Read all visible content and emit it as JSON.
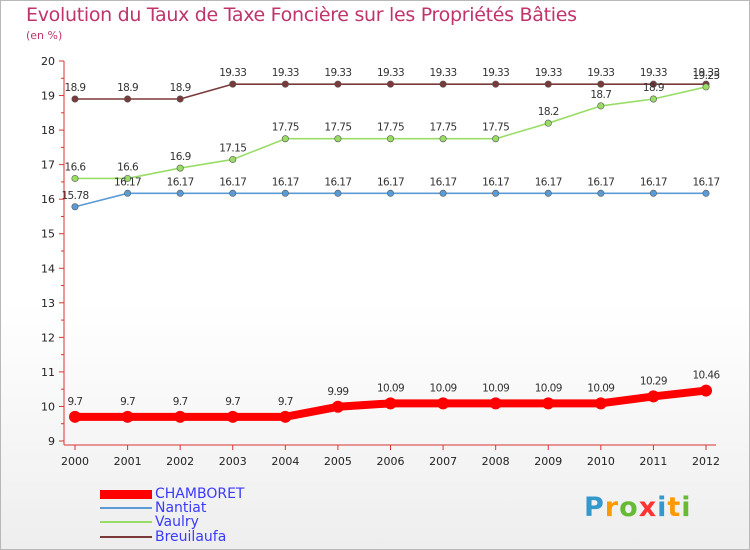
{
  "header": {
    "title": "Evolution du Taux de Taxe Foncière sur les Propriétés Bâties",
    "unit": "(en %)"
  },
  "chart_data": {
    "type": "line",
    "title": "Evolution du Taux de Taxe Foncière sur les Propriétés Bâties",
    "ylabel": "(en %)",
    "xlabel": "",
    "x": [
      "2000",
      "2001",
      "2002",
      "2003",
      "2004",
      "2005",
      "2006",
      "2007",
      "2008",
      "2009",
      "2010",
      "2011",
      "2012"
    ],
    "ylim": [
      9,
      20
    ],
    "yticks": [
      "9",
      "10",
      "11",
      "12",
      "13",
      "14",
      "15",
      "16",
      "17",
      "18",
      "19",
      "20"
    ],
    "grid": false,
    "legend_position": "bottom-left",
    "series": [
      {
        "name": "CHAMBORET",
        "color": "#ff0000",
        "values": [
          9.7,
          9.7,
          9.7,
          9.7,
          9.7,
          9.99,
          10.09,
          10.09,
          10.09,
          10.09,
          10.09,
          10.29,
          10.46
        ],
        "labels": [
          "9.7",
          "9.7",
          "9.7",
          "9.7",
          "9.7",
          "9.99",
          "10.09",
          "10.09",
          "10.09",
          "10.09",
          "10.09",
          "10.29",
          "10.46"
        ]
      },
      {
        "name": "Nantiat",
        "color": "#5b9bd5",
        "values": [
          15.78,
          16.17,
          16.17,
          16.17,
          16.17,
          16.17,
          16.17,
          16.17,
          16.17,
          16.17,
          16.17,
          16.17,
          16.17
        ],
        "labels": [
          "15.78",
          "16.17",
          "16.17",
          "16.17",
          "16.17",
          "16.17",
          "16.17",
          "16.17",
          "16.17",
          "16.17",
          "16.17",
          "16.17",
          "16.17"
        ]
      },
      {
        "name": "Vaulry",
        "color": "#99dd66",
        "values": [
          16.6,
          16.6,
          16.9,
          17.15,
          17.75,
          17.75,
          17.75,
          17.75,
          17.75,
          18.2,
          18.7,
          18.9,
          19.25
        ],
        "labels": [
          "16.6",
          "16.6",
          "16.9",
          "17.15",
          "17.75",
          "17.75",
          "17.75",
          "17.75",
          "17.75",
          "18.2",
          "18.7",
          "18.9",
          "19.25"
        ]
      },
      {
        "name": "Breuilaufa",
        "color": "#7a3a3a",
        "values": [
          18.9,
          18.9,
          18.9,
          19.33,
          19.33,
          19.33,
          19.33,
          19.33,
          19.33,
          19.33,
          19.33,
          19.33,
          19.33
        ],
        "labels": [
          "18.9",
          "18.9",
          "18.9",
          "19.33",
          "19.33",
          "19.33",
          "19.33",
          "19.33",
          "19.33",
          "19.33",
          "19.33",
          "19.33",
          "19.33"
        ]
      }
    ]
  },
  "legend": [
    {
      "label": "CHAMBORET",
      "color": "#ff0000"
    },
    {
      "label": "Nantiat",
      "color": "#5b9bd5"
    },
    {
      "label": "Vaulry",
      "color": "#99dd66"
    },
    {
      "label": "Breuilaufa",
      "color": "#7a3a3a"
    }
  ],
  "logo": {
    "letters": [
      "P",
      "r",
      "o",
      "x",
      "i",
      "t",
      "i"
    ],
    "colors": [
      "#3399cc",
      "#ff9900",
      "#66bb33",
      "#ff3333",
      "#3399cc",
      "#ff9900",
      "#66bb33"
    ]
  }
}
